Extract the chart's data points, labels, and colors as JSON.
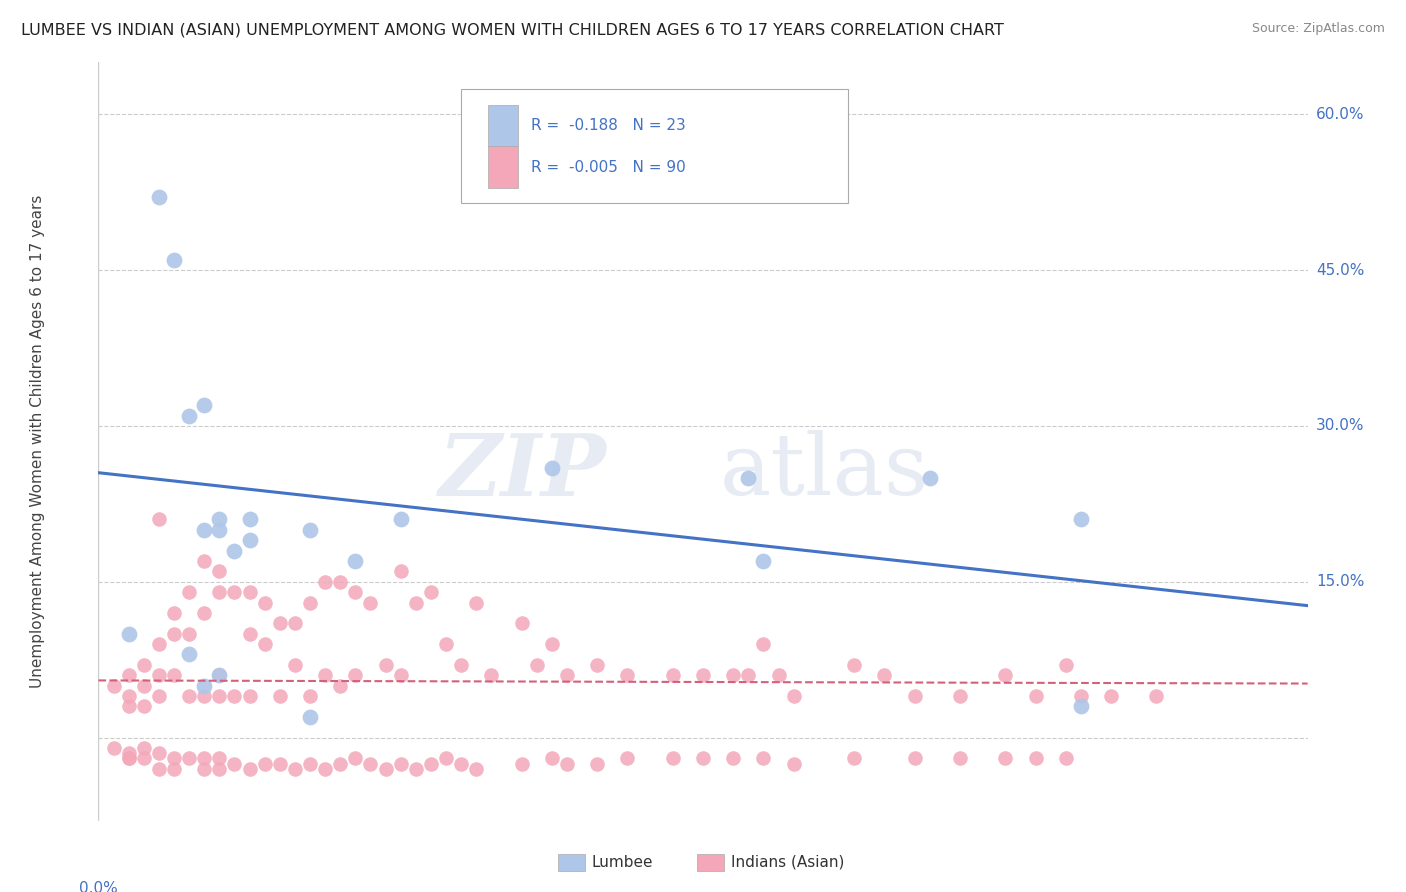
{
  "title": "LUMBEE VS INDIAN (ASIAN) UNEMPLOYMENT AMONG WOMEN WITH CHILDREN AGES 6 TO 17 YEARS CORRELATION CHART",
  "source": "Source: ZipAtlas.com",
  "ylabel": "Unemployment Among Women with Children Ages 6 to 17 years",
  "yticks": [
    0.0,
    0.15,
    0.3,
    0.45,
    0.6
  ],
  "ytick_labels": [
    "",
    "15.0%",
    "30.0%",
    "45.0%",
    "60.0%"
  ],
  "xlim": [
    0.0,
    0.8
  ],
  "ylim": [
    -0.08,
    0.65
  ],
  "legend_lumbee": "Lumbee",
  "legend_indian": "Indians (Asian)",
  "r_lumbee": "-0.188",
  "n_lumbee": "23",
  "r_indian": "-0.005",
  "n_indian": "90",
  "lumbee_color": "#aec6e8",
  "indian_color": "#f4a7b9",
  "lumbee_line_color": "#4472c4",
  "indian_line_color": "#d4607a",
  "background_color": "#ffffff",
  "grid_color": "#cccccc",
  "lumbee_scatter_x": [
    0.04,
    0.05,
    0.06,
    0.07,
    0.07,
    0.08,
    0.08,
    0.09,
    0.1,
    0.1,
    0.14,
    0.17,
    0.2,
    0.3,
    0.43,
    0.44,
    0.55,
    0.65
  ],
  "lumbee_scatter_y": [
    0.52,
    0.46,
    0.31,
    0.32,
    0.2,
    0.21,
    0.2,
    0.18,
    0.19,
    0.21,
    0.2,
    0.17,
    0.21,
    0.26,
    0.25,
    0.17,
    0.25,
    0.21
  ],
  "lumbee_scatter_x2": [
    0.02,
    0.06,
    0.07,
    0.08,
    0.14,
    0.65
  ],
  "lumbee_scatter_y2": [
    0.1,
    0.08,
    0.05,
    0.06,
    0.02,
    0.03
  ],
  "indian_scatter_x": [
    0.01,
    0.02,
    0.02,
    0.02,
    0.03,
    0.03,
    0.03,
    0.04,
    0.04,
    0.04,
    0.04,
    0.05,
    0.05,
    0.05,
    0.06,
    0.06,
    0.06,
    0.07,
    0.07,
    0.07,
    0.08,
    0.08,
    0.08,
    0.08,
    0.09,
    0.09,
    0.1,
    0.1,
    0.1,
    0.11,
    0.11,
    0.12,
    0.12,
    0.13,
    0.13,
    0.14,
    0.14,
    0.15,
    0.15,
    0.16,
    0.16,
    0.17,
    0.17,
    0.18,
    0.19,
    0.2,
    0.2,
    0.21,
    0.22,
    0.23,
    0.24,
    0.25,
    0.26,
    0.28,
    0.29,
    0.3,
    0.31,
    0.33,
    0.35,
    0.38,
    0.4,
    0.42,
    0.43,
    0.44,
    0.45,
    0.46,
    0.5,
    0.52,
    0.54,
    0.57,
    0.6,
    0.62,
    0.64,
    0.65,
    0.67,
    0.7
  ],
  "indian_scatter_y": [
    0.05,
    0.06,
    0.04,
    0.03,
    0.07,
    0.05,
    0.03,
    0.21,
    0.09,
    0.06,
    0.04,
    0.12,
    0.1,
    0.06,
    0.14,
    0.1,
    0.04,
    0.17,
    0.12,
    0.04,
    0.16,
    0.14,
    0.06,
    0.04,
    0.14,
    0.04,
    0.14,
    0.1,
    0.04,
    0.13,
    0.09,
    0.11,
    0.04,
    0.11,
    0.07,
    0.13,
    0.04,
    0.15,
    0.06,
    0.15,
    0.05,
    0.14,
    0.06,
    0.13,
    0.07,
    0.16,
    0.06,
    0.13,
    0.14,
    0.09,
    0.07,
    0.13,
    0.06,
    0.11,
    0.07,
    0.09,
    0.06,
    0.07,
    0.06,
    0.06,
    0.06,
    0.06,
    0.06,
    0.09,
    0.06,
    0.04,
    0.07,
    0.06,
    0.04,
    0.04,
    0.06,
    0.04,
    0.07,
    0.04,
    0.04,
    0.04
  ],
  "indian_scatter_x_neg": [
    0.01,
    0.02,
    0.02,
    0.02,
    0.03,
    0.03,
    0.04,
    0.04,
    0.05,
    0.05,
    0.06,
    0.07,
    0.07,
    0.08,
    0.08,
    0.09,
    0.1,
    0.11,
    0.12,
    0.13,
    0.14,
    0.15,
    0.16,
    0.17,
    0.18,
    0.19,
    0.2,
    0.21,
    0.22,
    0.23,
    0.24,
    0.25,
    0.28,
    0.3,
    0.31,
    0.33,
    0.35,
    0.38,
    0.4,
    0.42,
    0.44,
    0.46,
    0.5,
    0.54,
    0.57,
    0.6,
    0.62,
    0.64
  ],
  "indian_scatter_y_neg": [
    -0.01,
    -0.02,
    -0.02,
    -0.015,
    -0.02,
    -0.01,
    -0.03,
    -0.015,
    -0.03,
    -0.02,
    -0.02,
    -0.03,
    -0.02,
    -0.03,
    -0.02,
    -0.025,
    -0.03,
    -0.025,
    -0.025,
    -0.03,
    -0.025,
    -0.03,
    -0.025,
    -0.02,
    -0.025,
    -0.03,
    -0.025,
    -0.03,
    -0.025,
    -0.02,
    -0.025,
    -0.03,
    -0.025,
    -0.02,
    -0.025,
    -0.025,
    -0.02,
    -0.02,
    -0.02,
    -0.02,
    -0.02,
    -0.025,
    -0.02,
    -0.02,
    -0.02,
    -0.02,
    -0.02,
    -0.02
  ]
}
